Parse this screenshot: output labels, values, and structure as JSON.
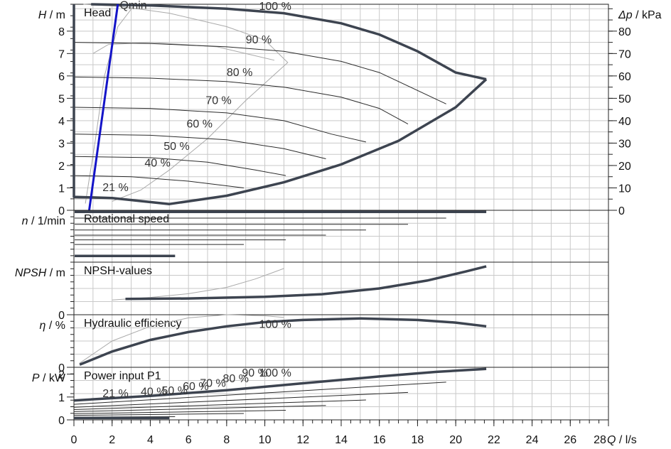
{
  "chart_data": {
    "type": "line",
    "x_axis": {
      "label_prefix": "Q",
      "label_unit": "/ l/s",
      "range": [
        0,
        28
      ],
      "ticks": [
        0,
        2,
        4,
        6,
        8,
        10,
        12,
        14,
        16,
        18,
        20,
        22,
        24,
        26,
        28
      ],
      "minor_step": 0.5
    },
    "grid": true,
    "colors": {
      "curve": "#3d4450",
      "limit": "#3d4450",
      "thin": "#2b2b2b",
      "grey": "#aaaaaa",
      "qmin": "#1414c8",
      "grid": "#c9c9c9",
      "axis": "#222222",
      "text": "#111111"
    },
    "panels": [
      {
        "id": "head",
        "title": "Head",
        "ylabel_symbol": "H",
        "ylabel_unit": "/ m",
        "y_range": [
          0,
          9.2
        ],
        "y_ticks": [
          0,
          1,
          2,
          3,
          4,
          5,
          6,
          7,
          8
        ],
        "right_axis": {
          "symbol": "Δp",
          "unit": "/ kPa",
          "scale": 0.1,
          "ticks": [
            0,
            10,
            20,
            30,
            40,
            50,
            60,
            70,
            80
          ]
        },
        "speed_curves": [
          {
            "label": "100 %",
            "label_at": [
              9.7,
              8.95
            ],
            "points": [
              [
                0.9,
                9.2
              ],
              [
                4,
                9.15
              ],
              [
                8,
                9.0
              ],
              [
                11,
                8.8
              ],
              [
                14,
                8.35
              ],
              [
                16,
                7.85
              ],
              [
                18,
                7.1
              ],
              [
                20,
                6.15
              ],
              [
                21.6,
                5.85
              ]
            ]
          },
          {
            "label": "90 %",
            "label_at": [
              9.0,
              7.45
            ],
            "points": [
              [
                0,
                7.5
              ],
              [
                4,
                7.45
              ],
              [
                8,
                7.3
              ],
              [
                11,
                7.1
              ],
              [
                14,
                6.65
              ],
              [
                16,
                6.15
              ],
              [
                19.5,
                4.75
              ]
            ]
          },
          {
            "label": "80 %",
            "label_at": [
              8.0,
              6.0
            ],
            "points": [
              [
                0,
                5.95
              ],
              [
                4,
                5.9
              ],
              [
                8,
                5.75
              ],
              [
                11,
                5.5
              ],
              [
                14,
                5.05
              ],
              [
                16,
                4.55
              ],
              [
                17.5,
                3.85
              ]
            ]
          },
          {
            "label": "70 %",
            "label_at": [
              6.9,
              4.75
            ],
            "points": [
              [
                0,
                4.6
              ],
              [
                4,
                4.55
              ],
              [
                8,
                4.35
              ],
              [
                11,
                4.0
              ],
              [
                13.5,
                3.4
              ],
              [
                15.3,
                3.05
              ]
            ]
          },
          {
            "label": "60 %",
            "label_at": [
              5.9,
              3.7
            ],
            "points": [
              [
                0,
                3.4
              ],
              [
                4,
                3.35
              ],
              [
                8,
                3.15
              ],
              [
                11,
                2.75
              ],
              [
                13.2,
                2.3
              ]
            ]
          },
          {
            "label": "50 %",
            "label_at": [
              4.7,
              2.7
            ],
            "points": [
              [
                0,
                2.4
              ],
              [
                4,
                2.35
              ],
              [
                7,
                2.15
              ],
              [
                9.5,
                1.8
              ],
              [
                11.1,
                1.55
              ]
            ]
          },
          {
            "label": "40 %",
            "label_at": [
              3.7,
              1.95
            ],
            "points": [
              [
                0,
                1.55
              ],
              [
                3,
                1.5
              ],
              [
                6,
                1.3
              ],
              [
                8.9,
                1.0
              ]
            ]
          },
          {
            "label": "21 %",
            "label_at": [
              1.5,
              0.85
            ],
            "points": [
              [
                0,
                0.55
              ],
              [
                2,
                0.52
              ],
              [
                4.9,
                0.3
              ]
            ]
          }
        ],
        "limit_curve": [
          [
            0,
            9.2
          ],
          [
            0,
            0.6
          ],
          [
            2,
            0.55
          ],
          [
            5,
            0.28
          ],
          [
            8,
            0.65
          ],
          [
            11,
            1.25
          ],
          [
            14,
            2.05
          ],
          [
            17,
            3.1
          ],
          [
            20,
            4.6
          ],
          [
            21.6,
            5.85
          ]
        ],
        "grey_curves": [
          [
            [
              0.5,
              9.2
            ],
            [
              2.5,
              9.1
            ],
            [
              5,
              8.8
            ],
            [
              8,
              8.2
            ],
            [
              10,
              7.6
            ],
            [
              11.2,
              6.6
            ],
            [
              9,
              4.9
            ],
            [
              7,
              3.2
            ],
            [
              5,
              1.8
            ],
            [
              3.5,
              0.9
            ],
            [
              2,
              0.4
            ]
          ],
          [
            [
              0.6,
              0.3
            ],
            [
              1.1,
              3.0
            ],
            [
              1.6,
              6.0
            ],
            [
              2.3,
              8.2
            ],
            [
              3.2,
              9.2
            ]
          ],
          [
            [
              1.0,
              7.0
            ],
            [
              1.8,
              7.4
            ],
            [
              4,
              7.5
            ],
            [
              7.5,
              7.3
            ],
            [
              10.5,
              6.7
            ]
          ]
        ],
        "qmin": {
          "label": "Qmin",
          "label_at": [
            2.4,
            9.0
          ],
          "from": [
            0.8,
            0
          ],
          "to": [
            2.3,
            9.6
          ]
        }
      },
      {
        "id": "speed",
        "title": "Rotational speed",
        "ylabel_symbol": "n",
        "ylabel_unit": "/ 1/min",
        "y_range": [
          0,
          1
        ],
        "y_ticks": [],
        "lines": [
          {
            "level": 0.97,
            "x_range": [
              0,
              21.6
            ],
            "style": "thick"
          },
          {
            "level": 0.85,
            "x_range": [
              0,
              19.5
            ],
            "style": "thin"
          },
          {
            "level": 0.73,
            "x_range": [
              0,
              17.5
            ],
            "style": "thin"
          },
          {
            "level": 0.62,
            "x_range": [
              0,
              15.3
            ],
            "style": "thin"
          },
          {
            "level": 0.52,
            "x_range": [
              0,
              13.2
            ],
            "style": "thin"
          },
          {
            "level": 0.43,
            "x_range": [
              0,
              11.1
            ],
            "style": "thin"
          },
          {
            "level": 0.34,
            "x_range": [
              0,
              8.9
            ],
            "style": "thin"
          },
          {
            "level": 0.12,
            "x_range": [
              0,
              5.3
            ],
            "style": "thick"
          }
        ]
      },
      {
        "id": "npsh",
        "title": "NPSH-values",
        "ylabel_symbol": "NPSH",
        "ylabel_unit": "/ m",
        "y_range": [
          0,
          1
        ],
        "y_ticks": [
          0
        ],
        "main_curve": [
          [
            2.7,
            0.3
          ],
          [
            6,
            0.31
          ],
          [
            10,
            0.34
          ],
          [
            13,
            0.39
          ],
          [
            16,
            0.5
          ],
          [
            18.5,
            0.65
          ],
          [
            20.5,
            0.82
          ],
          [
            21.6,
            0.92
          ]
        ],
        "grey_curve": [
          [
            2.0,
            0.28
          ],
          [
            4,
            0.33
          ],
          [
            6,
            0.4
          ],
          [
            8,
            0.52
          ],
          [
            9.5,
            0.68
          ],
          [
            11,
            0.88
          ]
        ]
      },
      {
        "id": "eff",
        "title": "Hydraulic efficiency",
        "ylabel_symbol": "η",
        "ylabel_unit": "/ %",
        "y_range": [
          0,
          1
        ],
        "y_ticks": [
          0
        ],
        "main_curve": [
          [
            0.3,
            0.05
          ],
          [
            2,
            0.3
          ],
          [
            4,
            0.52
          ],
          [
            6,
            0.67
          ],
          [
            8,
            0.78
          ],
          [
            10,
            0.86
          ],
          [
            12,
            0.9
          ],
          [
            15,
            0.93
          ],
          [
            18,
            0.9
          ],
          [
            20,
            0.85
          ],
          [
            21.6,
            0.78
          ]
        ],
        "grey_curve": [
          [
            0.3,
            0.08
          ],
          [
            2,
            0.5
          ],
          [
            4,
            0.78
          ],
          [
            6,
            0.94
          ],
          [
            8,
            1.0
          ],
          [
            10,
            0.98
          ],
          [
            11,
            0.95
          ]
        ],
        "label": {
          "text": "100 %",
          "at": [
            9.7,
            0.75
          ]
        }
      },
      {
        "id": "power",
        "title": "Power input P1",
        "ylabel_symbol": "P",
        "ylabel_unit": "/ kW",
        "y_range": [
          0,
          2.3
        ],
        "y_ticks": [
          0,
          1,
          2
        ],
        "main_curve": [
          [
            0,
            0.85
          ],
          [
            4,
            1.05
          ],
          [
            8,
            1.3
          ],
          [
            12,
            1.6
          ],
          [
            16,
            1.9
          ],
          [
            19,
            2.1
          ],
          [
            21.6,
            2.23
          ]
        ],
        "thin_lines": [
          [
            [
              0,
              0.68
            ],
            [
              19.5,
              1.65
            ]
          ],
          [
            [
              0,
              0.55
            ],
            [
              17.5,
              1.2
            ]
          ],
          [
            [
              0,
              0.45
            ],
            [
              15.3,
              0.87
            ]
          ],
          [
            [
              0,
              0.36
            ],
            [
              13.2,
              0.63
            ]
          ],
          [
            [
              0,
              0.27
            ],
            [
              11.1,
              0.42
            ]
          ],
          [
            [
              0,
              0.2
            ],
            [
              8.9,
              0.28
            ]
          ],
          [
            [
              0,
              0.12
            ],
            [
              5.3,
              0.14
            ]
          ]
        ],
        "base_curve": [
          [
            0,
            0.08
          ],
          [
            5,
            0.08
          ]
        ],
        "labels": [
          {
            "text": "21 %",
            "at": [
              1.5,
              1.0
            ]
          },
          {
            "text": "40 %",
            "at": [
              3.5,
              1.08
            ]
          },
          {
            "text": "50 %",
            "at": [
              4.6,
              1.12
            ]
          },
          {
            "text": "60 %",
            "at": [
              5.7,
              1.3
            ]
          },
          {
            "text": "70 %",
            "at": [
              6.6,
              1.45
            ]
          },
          {
            "text": "80 %",
            "at": [
              7.8,
              1.65
            ]
          },
          {
            "text": "90 %",
            "at": [
              8.8,
              1.9
            ]
          },
          {
            "text": "100 %",
            "at": [
              9.7,
              1.9
            ]
          }
        ]
      }
    ]
  }
}
